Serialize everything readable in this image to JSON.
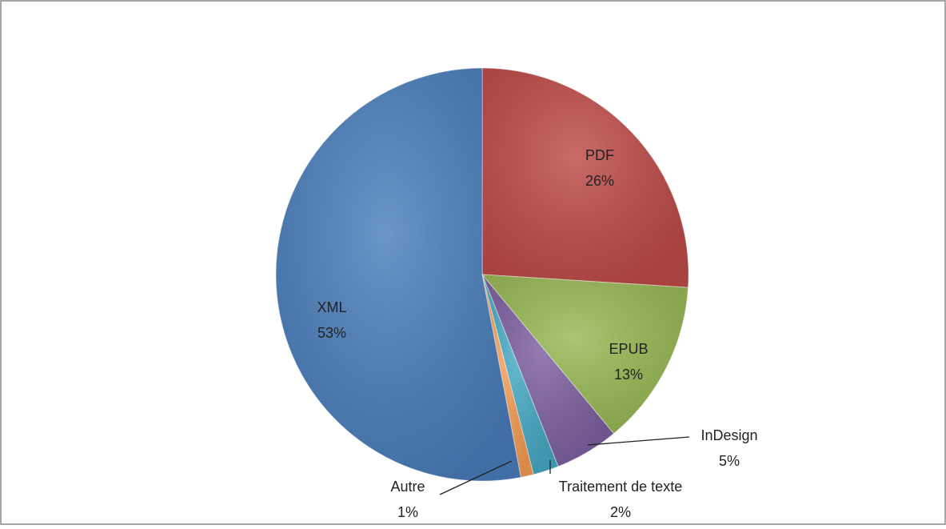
{
  "chart_data": {
    "type": "pie",
    "categories": [
      "PDF",
      "EPUB",
      "InDesign",
      "Traitement de texte",
      "Autre",
      "XML"
    ],
    "values": [
      26,
      13,
      5,
      2,
      1,
      53
    ],
    "value_labels": [
      "26%",
      "13%",
      "5%",
      "2%",
      "1%",
      "53%"
    ],
    "colors": [
      "#be4b48",
      "#98b954",
      "#7d60a0",
      "#46aac5",
      "#f59d56",
      "#4a7ebb"
    ]
  }
}
